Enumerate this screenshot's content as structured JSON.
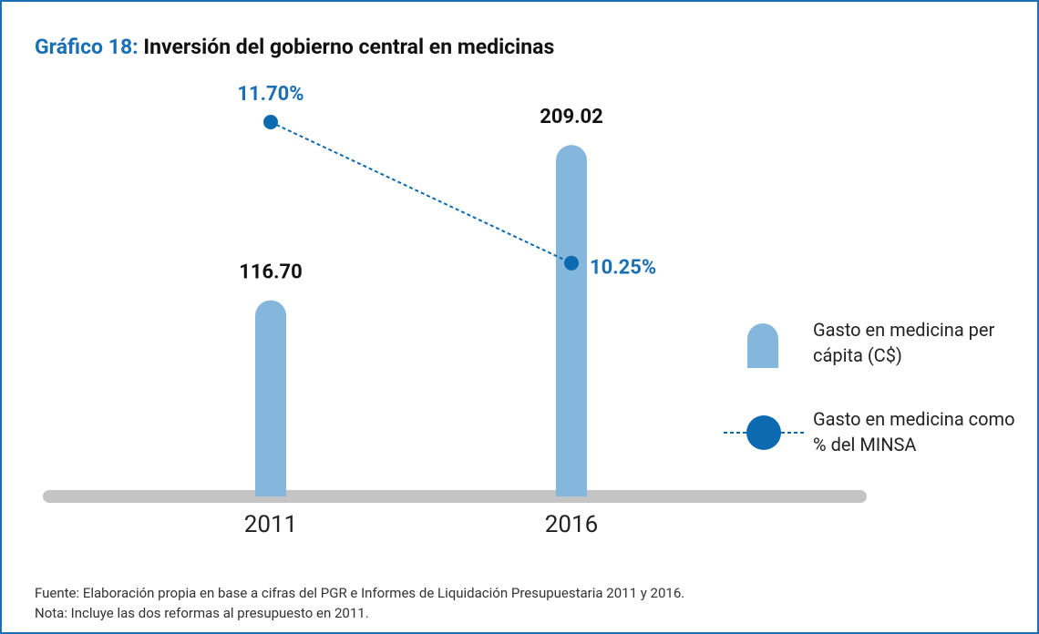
{
  "chart_data": {
    "type": "bar_line",
    "title_prefix": "Gráfico 18:",
    "title": "Inversión del gobierno central en medicinas",
    "categories": [
      "2011",
      "2016"
    ],
    "series": [
      {
        "name": "Gasto en medicina per cápita (C$)",
        "type": "bar",
        "color": "#85b6dc",
        "values": [
          116.7,
          209.02
        ],
        "value_labels": [
          "116.70",
          "209.02"
        ]
      },
      {
        "name": "Gasto en medicina como % del MINSA",
        "type": "line",
        "axis": "y2",
        "color": "#0e6ab0",
        "values": [
          11.7,
          10.25
        ],
        "value_labels": [
          "11.70%",
          "10.25%"
        ]
      }
    ],
    "ylim": [
      0,
      240
    ],
    "y2lim": [
      7.85,
      12.0
    ],
    "notes": [
      "Fuente: Elaboración propia en base a cifras del PGR e Informes de Liquidación Presupuestaria 2011 y 2016.",
      "Nota: Incluye las dos reformas al presupuesto en 2011."
    ]
  }
}
